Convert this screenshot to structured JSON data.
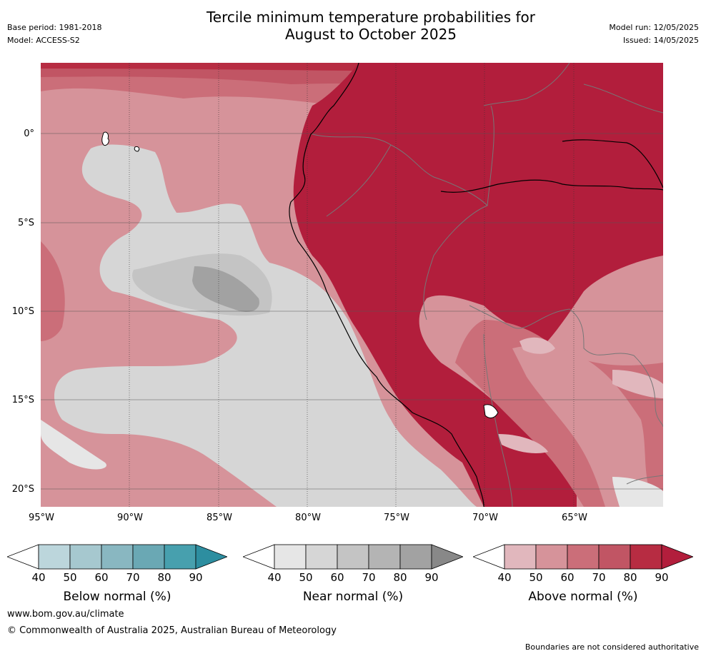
{
  "title_line1": "Tercile minimum temperature probabilities for",
  "title_line2": "August to October 2025",
  "meta_left": {
    "base_period": "Base period: 1981-2018",
    "model": "Model: ACCESS-S2"
  },
  "meta_right": {
    "model_run": "Model run: 12/05/2025",
    "issued": "Issued: 14/05/2025"
  },
  "lat_labels": [
    "0°",
    "5°S",
    "10°S",
    "15°S",
    "20°S"
  ],
  "lon_labels": [
    "95°W",
    "90°W",
    "85°W",
    "80°W",
    "75°W",
    "70°W",
    "65°W"
  ],
  "colorbars": [
    {
      "title": "Below normal (%)",
      "ticks": [
        "40",
        "50",
        "60",
        "70",
        "80",
        "90"
      ],
      "colors": [
        "#bcd6dc",
        "#a6c8cf",
        "#89b7c1",
        "#6aa8b4",
        "#47a0ae",
        "#2d8ea0"
      ]
    },
    {
      "title": "Near normal (%)",
      "ticks": [
        "40",
        "50",
        "60",
        "70",
        "80",
        "90"
      ],
      "colors": [
        "#e6e6e6",
        "#d6d6d6",
        "#c4c4c4",
        "#b4b4b4",
        "#a2a2a2",
        "#888888"
      ]
    },
    {
      "title": "Above normal (%)",
      "ticks": [
        "40",
        "50",
        "60",
        "70",
        "80",
        "90"
      ],
      "colors": [
        "#e1b7bd",
        "#d6939a",
        "#cb6e79",
        "#c15564",
        "#b72c42",
        "#b21e3c"
      ]
    }
  ],
  "footer": {
    "url": "www.bom.gov.au/climate",
    "copyright": "© Commonwealth of Australia 2025, Australian Bureau of Meteorology",
    "note": "Boundaries are not considered authoritative"
  }
}
